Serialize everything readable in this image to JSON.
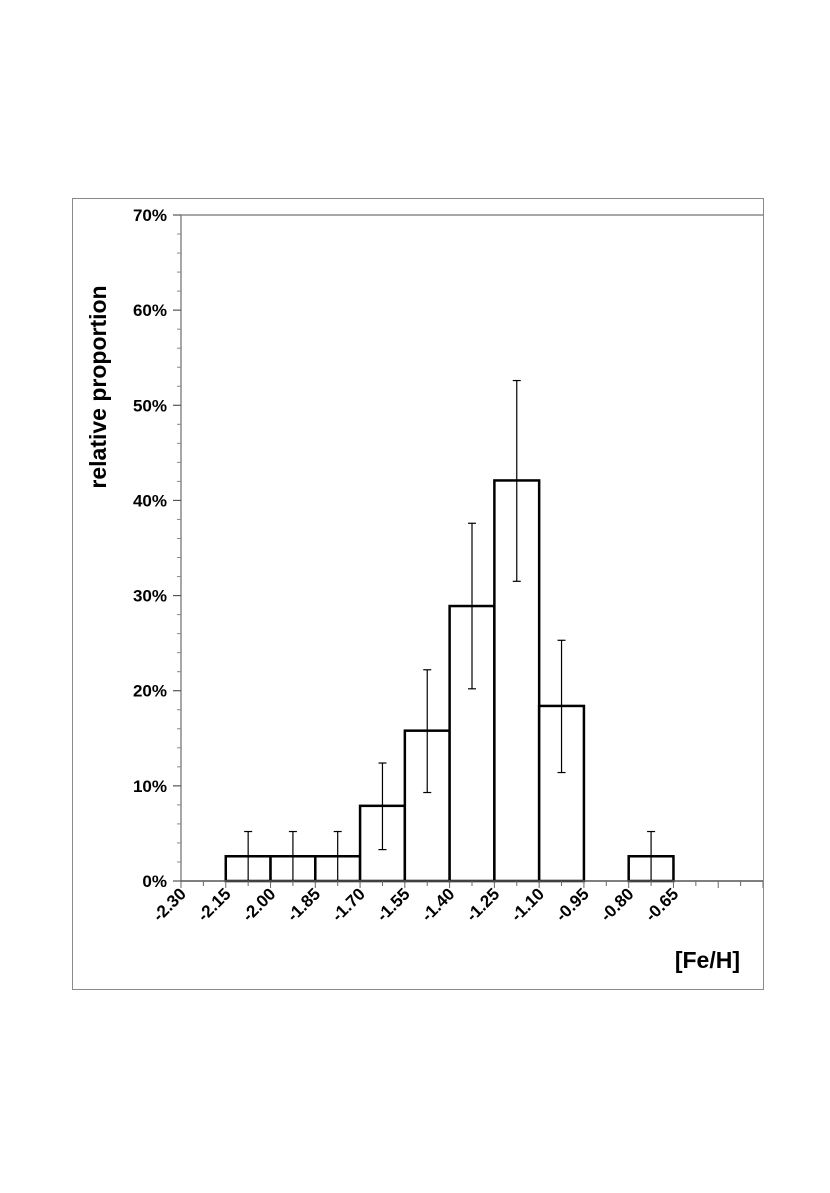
{
  "chart_data": {
    "type": "bar",
    "title": "",
    "xlabel": "[Fe/H]",
    "ylabel": "relative proportion",
    "x_tick_labels": [
      "-2.30",
      "-2.15",
      "-2.00",
      "-1.85",
      "-1.70",
      "-1.55",
      "-1.40",
      "-1.25",
      "-1.10",
      "-0.95",
      "-0.80",
      "-0.65"
    ],
    "y_tick_labels": [
      "0%",
      "10%",
      "20%",
      "30%",
      "40%",
      "50%",
      "60%",
      "70%"
    ],
    "xlim": [
      -2.3,
      -0.35
    ],
    "ylim": [
      0,
      70
    ],
    "bins": [
      {
        "x0": -2.15,
        "x1": -2.0,
        "value": 2.6,
        "err_low": 0,
        "err_high": 5.2
      },
      {
        "x0": -2.0,
        "x1": -1.85,
        "value": 2.6,
        "err_low": 0,
        "err_high": 5.2
      },
      {
        "x0": -1.85,
        "x1": -1.7,
        "value": 2.6,
        "err_low": 0,
        "err_high": 5.2
      },
      {
        "x0": -1.7,
        "x1": -1.55,
        "value": 7.9,
        "err_low": 3.3,
        "err_high": 12.4
      },
      {
        "x0": -1.55,
        "x1": -1.4,
        "value": 15.8,
        "err_low": 9.3,
        "err_high": 22.2
      },
      {
        "x0": -1.4,
        "x1": -1.25,
        "value": 28.9,
        "err_low": 20.2,
        "err_high": 37.6
      },
      {
        "x0": -1.25,
        "x1": -1.1,
        "value": 42.1,
        "err_low": 31.5,
        "err_high": 52.6
      },
      {
        "x0": -1.1,
        "x1": -0.95,
        "value": 18.4,
        "err_low": 11.4,
        "err_high": 25.3
      },
      {
        "x0": -0.8,
        "x1": -0.65,
        "value": 2.6,
        "err_low": 0,
        "err_high": 5.2
      }
    ],
    "error_bars": true,
    "grid": false,
    "legend": "none",
    "bar_fill": "#ffffff",
    "bar_stroke": "#000000"
  }
}
